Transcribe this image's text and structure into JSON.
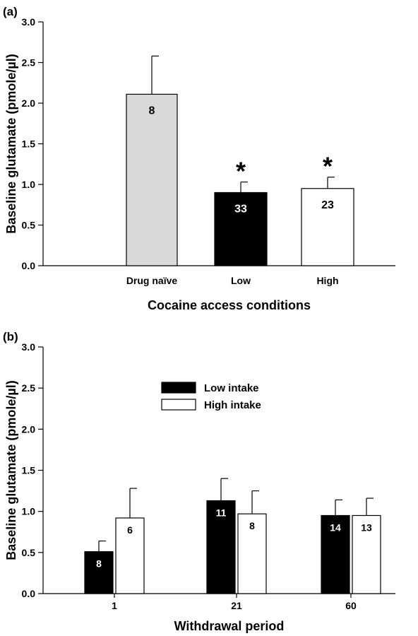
{
  "chart_data": [
    {
      "type": "bar",
      "panel_label": "(a)",
      "title": "",
      "xlabel": "Cocaine access conditions",
      "ylabel": "Baseline glutamate (pmole/µl)",
      "ylim": [
        0,
        3.0
      ],
      "yticks": [
        "0.0",
        "0.5",
        "1.0",
        "1.5",
        "2.0",
        "2.5",
        "3.0"
      ],
      "categories": [
        "Drug naïve",
        "Low",
        "High"
      ],
      "values": [
        2.11,
        0.9,
        0.95
      ],
      "errors": [
        0.47,
        0.13,
        0.14
      ],
      "n_labels": [
        "8",
        "33",
        "23"
      ],
      "significance": [
        "",
        "*",
        "*"
      ],
      "colors": [
        "#d9d9d9",
        "#000000",
        "#ffffff"
      ],
      "grid": false
    },
    {
      "type": "bar",
      "panel_label": "(b)",
      "title": "",
      "xlabel": "Withdrawal period",
      "ylabel": "Baseline glutamate (pmole/µl)",
      "ylim": [
        0,
        3.0
      ],
      "yticks": [
        "0.0",
        "0.5",
        "1.0",
        "1.5",
        "2.0",
        "2.5",
        "3.0"
      ],
      "categories": [
        "1",
        "21",
        "60"
      ],
      "legend_position": "top-left",
      "grid": false,
      "series": [
        {
          "name": "Low intake",
          "color": "#000000",
          "values": [
            0.51,
            1.13,
            0.95
          ],
          "errors": [
            0.13,
            0.27,
            0.19
          ],
          "n_labels": [
            "8",
            "11",
            "14"
          ]
        },
        {
          "name": "High intake",
          "color": "#ffffff",
          "values": [
            0.92,
            0.97,
            0.95
          ],
          "errors": [
            0.36,
            0.28,
            0.21
          ],
          "n_labels": [
            "6",
            "8",
            "13"
          ]
        }
      ]
    }
  ]
}
